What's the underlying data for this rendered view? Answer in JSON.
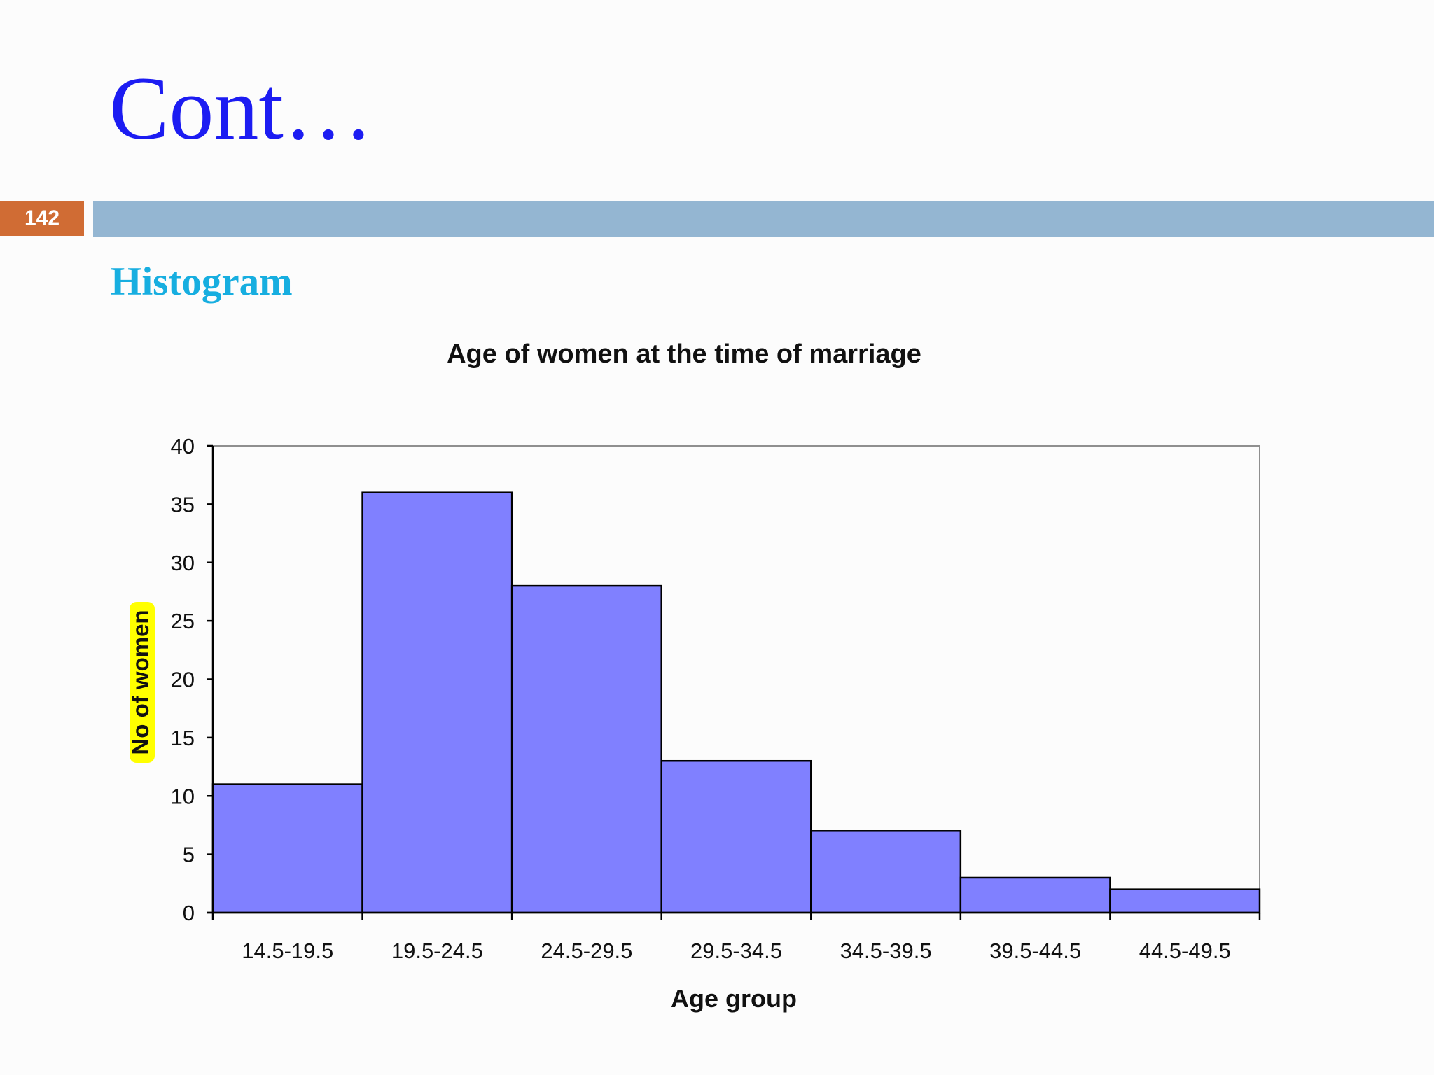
{
  "slide": {
    "title": "Cont…",
    "page_number": "142",
    "subheading": "Histogram"
  },
  "colors": {
    "title": "#1c1cf2",
    "page_badge": "#d06c34",
    "title_rule": "#94b6d2",
    "subheading": "#17aee0",
    "bar_fill": "#8080ff",
    "ylabel_highlight": "#ffff00"
  },
  "chart_data": {
    "type": "bar",
    "title": "Age of women at the time of marriage",
    "xlabel": "Age group",
    "ylabel": "No of women",
    "categories": [
      "14.5-19.5",
      "19.5-24.5",
      "24.5-29.5",
      "29.5-34.5",
      "34.5-39.5",
      "39.5-44.5",
      "44.5-49.5"
    ],
    "values": [
      11,
      36,
      28,
      13,
      7,
      3,
      2
    ],
    "ylim": [
      0,
      40
    ],
    "yticks": [
      0,
      5,
      10,
      15,
      20,
      25,
      30,
      35,
      40
    ],
    "grid": false,
    "legend": "none"
  }
}
